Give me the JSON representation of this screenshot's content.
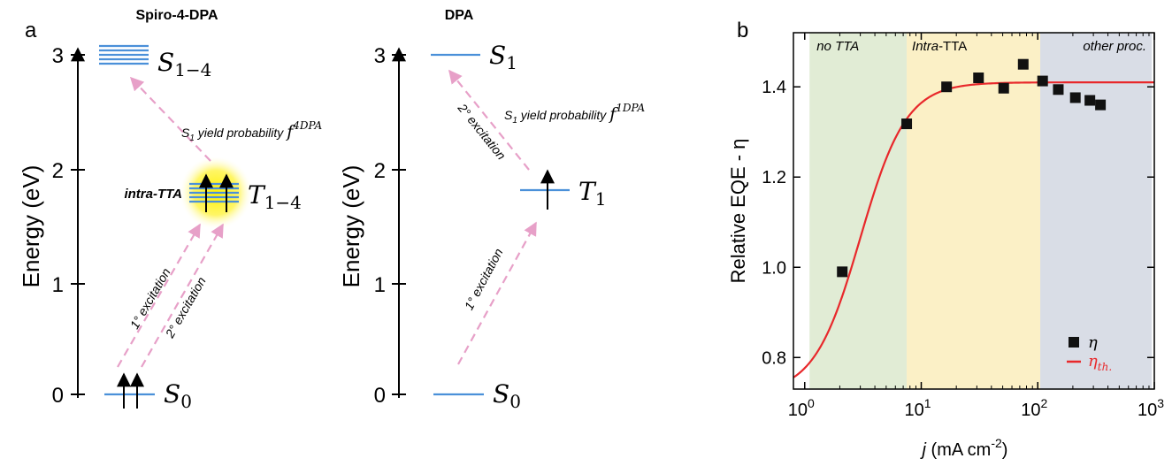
{
  "panel_a": {
    "label": "a",
    "left_diagram": {
      "title": "Spiro-4-DPA",
      "axis_label": "Energy (eV)",
      "ticks": [
        "0",
        "1",
        "2",
        "3"
      ],
      "state_S": "S",
      "state_S_sub": "1−4",
      "state_T": "T",
      "state_T_sub": "1−4",
      "state_S0": "S",
      "state_S0_sub": "0",
      "intra_tta_label": "intra-TTA",
      "yield_text": "S",
      "yield_sub": "1",
      "yield_rest": " yield probability ",
      "yield_f": "f",
      "yield_f_sup": "4DPA",
      "excitation_1": "1° excitation",
      "excitation_2": "2° excitation"
    },
    "right_diagram": {
      "title": "DPA",
      "axis_label": "Energy (eV)",
      "ticks": [
        "0",
        "1",
        "2",
        "3"
      ],
      "state_S": "S",
      "state_S_sub": "1",
      "state_T": "T",
      "state_T_sub": "1",
      "state_S0": "S",
      "state_S0_sub": "0",
      "yield_text": "S",
      "yield_sub": "1",
      "yield_rest": " yield probability ",
      "yield_f": "f",
      "yield_f_sup": "1DPA",
      "excitation_1": "1° excitation",
      "excitation_2": "2° excitation"
    }
  },
  "chart_data": {
    "type": "scatter",
    "panel_label": "b",
    "xlabel": "j (mA cm",
    "xlabel_sup": "-2",
    "xlabel_close": ")",
    "ylabel": "Relative EQE - η",
    "x_scale": "log",
    "xlim": [
      0.8,
      1000
    ],
    "ylim": [
      0.73,
      1.52
    ],
    "x_ticks": [
      {
        "value": 1,
        "base": "10",
        "exp": "0"
      },
      {
        "value": 10,
        "base": "10",
        "exp": "1"
      },
      {
        "value": 100,
        "base": "10",
        "exp": "2"
      },
      {
        "value": 1000,
        "base": "10",
        "exp": "3"
      }
    ],
    "y_ticks": [
      {
        "value": 0.8,
        "label": "0.8"
      },
      {
        "value": 1.0,
        "label": "1.0"
      },
      {
        "value": 1.2,
        "label": "1.2"
      },
      {
        "value": 1.4,
        "label": "1.4"
      }
    ],
    "regions": [
      {
        "label": "no TTA",
        "x_start": 1.1,
        "x_end": 7.5,
        "color": "#e1ecd5"
      },
      {
        "label": "Intra-TTA",
        "label_italic": "Intra",
        "label_rest": "-TTA",
        "x_start": 7.5,
        "x_end": 105,
        "color": "#fbf0c6"
      },
      {
        "label": "other proc.",
        "x_start": 105,
        "x_end": 950,
        "color": "#d9dde6"
      }
    ],
    "series": [
      {
        "name": "η",
        "kind": "scatter",
        "color": "#111111",
        "x": [
          2.1,
          7.5,
          16.5,
          31,
          51,
          75,
          110,
          150,
          210,
          280,
          345
        ],
        "y": [
          0.99,
          1.318,
          1.4,
          1.42,
          1.397,
          1.45,
          1.413,
          1.394,
          1.376,
          1.37,
          1.36
        ]
      },
      {
        "name": "η",
        "name_sub": "th.",
        "kind": "line",
        "color": "#e8282b",
        "plateau": 1.41,
        "low": 0.72,
        "center": 3.0,
        "steepness": 2.2
      }
    ],
    "legend_position": "bottom-right"
  }
}
